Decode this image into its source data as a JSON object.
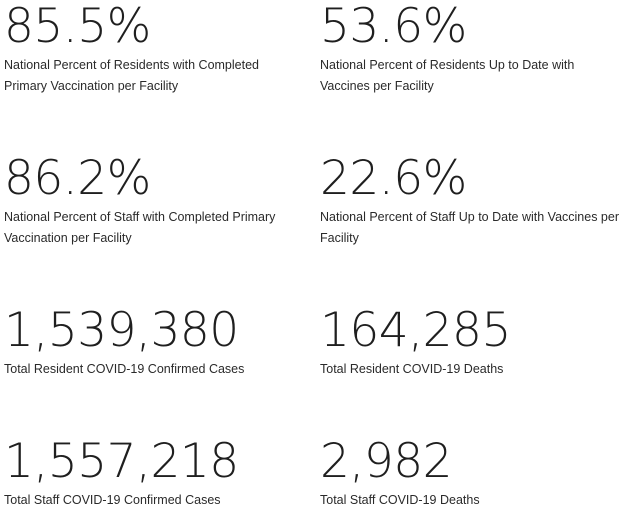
{
  "stats": [
    {
      "value": "85.5%",
      "label": "National Percent of Residents with Completed Primary Vaccination per Facility"
    },
    {
      "value": "53.6%",
      "label": "National Percent of Residents Up to Date with Vaccines per Facility"
    },
    {
      "value": "86.2%",
      "label": "National Percent of Staff with Completed Primary Vaccination per Facility"
    },
    {
      "value": "22.6%",
      "label": "National Percent of Staff Up to Date with Vaccines per Facility"
    },
    {
      "value": "1,539,380",
      "label": "Total Resident COVID-19 Confirmed Cases"
    },
    {
      "value": "164,285",
      "label": "Total Resident COVID-19 Deaths"
    },
    {
      "value": "1,557,218",
      "label": "Total Staff COVID-19 Confirmed Cases"
    },
    {
      "value": "2,982",
      "label": "Total Staff COVID-19 Deaths"
    }
  ]
}
